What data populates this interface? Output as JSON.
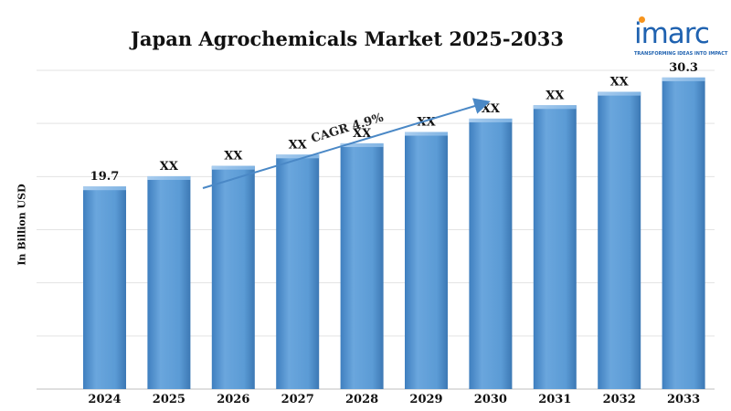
{
  "logo": {
    "word": "imarc",
    "tagline": "TRANSFORMING IDEAS INTO IMPACT",
    "brand_color": "#1f62b0",
    "dot_color": "#f7941d"
  },
  "cagr_label": "CAGR 4.9%",
  "chart_data": {
    "type": "bar",
    "title": "Japan Agrochemicals Market 2025-2033",
    "xlabel": "",
    "ylabel": "In Billion USD",
    "categories": [
      "2024",
      "2025",
      "2026",
      "2027",
      "2028",
      "2029",
      "2030",
      "2031",
      "2032",
      "2033"
    ],
    "values": [
      19.7,
      20.7,
      21.7,
      22.8,
      23.9,
      25.0,
      26.3,
      27.6,
      28.9,
      30.3
    ],
    "data_labels": [
      "19.7",
      "XX",
      "XX",
      "XX",
      "XX",
      "XX",
      "XX",
      "XX",
      "XX",
      "30.3"
    ],
    "ylim": [
      0,
      31
    ],
    "grid": true,
    "bar_color": "#5b9bd5",
    "annotations": [
      {
        "text": "CAGR 4.9%",
        "type": "arrow"
      }
    ]
  }
}
